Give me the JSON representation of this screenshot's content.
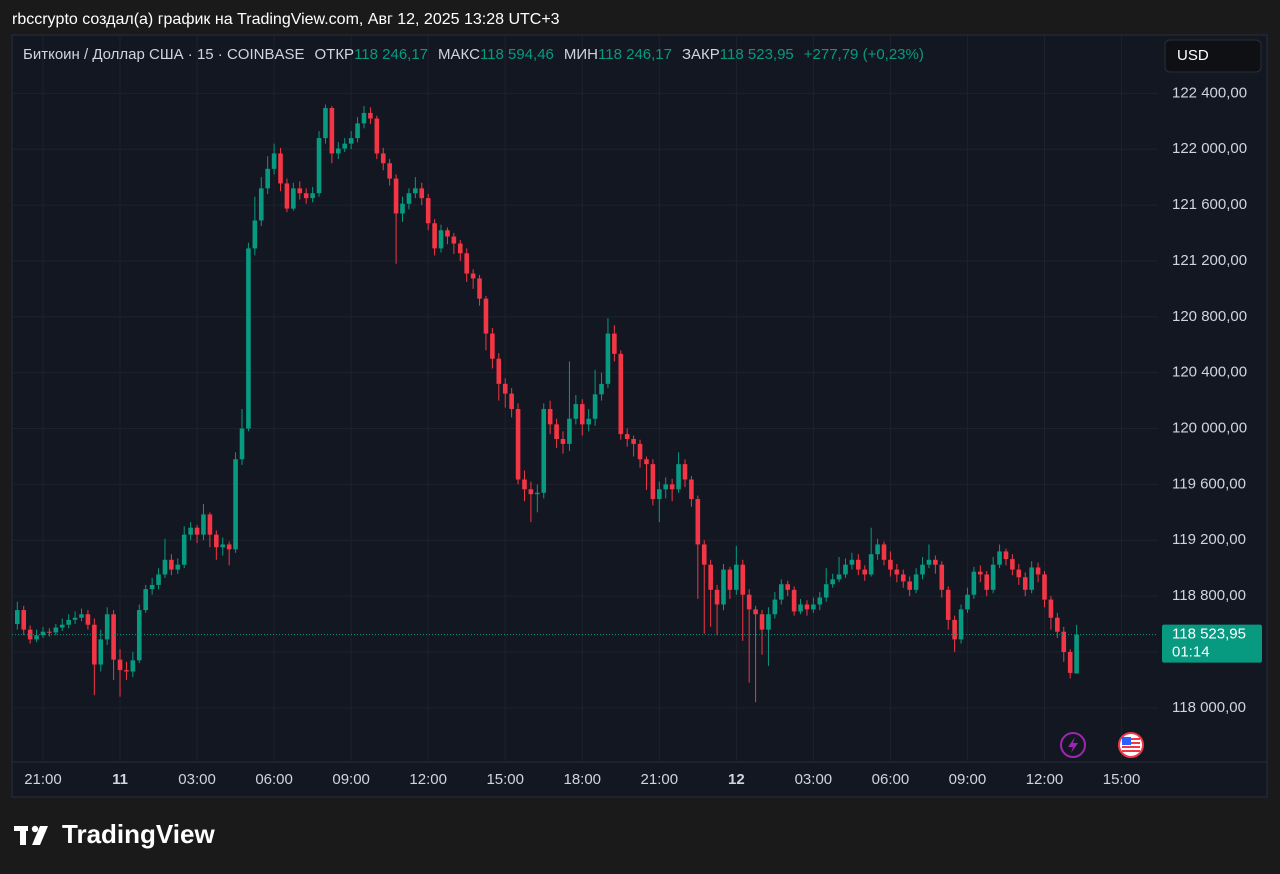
{
  "header": {
    "text": "rbccrypto создал(а) график на TradingView.com, Авг 12, 2025 13:28 UTC+3"
  },
  "chart_data": {
    "type": "candlestick",
    "symbol": "Биткоин / Доллар США · 15 · COINBASE",
    "readout": [
      {
        "label": "ОТКР",
        "value": "118 246,17"
      },
      {
        "label": "МАКС",
        "value": "118 594,46"
      },
      {
        "label": "МИН",
        "value": "118 246,17"
      },
      {
        "label": "ЗАКР",
        "value": "118 523,95"
      }
    ],
    "change": "+277,79 (+0,23%)",
    "currency": "USD",
    "last_price_label": "118 523,95",
    "countdown": "01:14",
    "up_color": "#089981",
    "down_color": "#f23645",
    "grid": true,
    "ylim": [
      117612,
      122811
    ],
    "yticks": [
      {
        "value": 118000,
        "label": "118 000,00"
      },
      {
        "value": 118400,
        "label": "118 400,00"
      },
      {
        "value": 118800,
        "label": "118 800,00"
      },
      {
        "value": 119200,
        "label": "119 200,00"
      },
      {
        "value": 119600,
        "label": "119 600,00"
      },
      {
        "value": 120000,
        "label": "120 000,00"
      },
      {
        "value": 120400,
        "label": "120 400,00"
      },
      {
        "value": 120800,
        "label": "120 800,00"
      },
      {
        "value": 121200,
        "label": "121 200,00"
      },
      {
        "value": 121600,
        "label": "121 600,00"
      },
      {
        "value": 122000,
        "label": "122 000,00"
      },
      {
        "value": 122400,
        "label": "122 400,00"
      }
    ],
    "categories": [
      null,
      null,
      null,
      null,
      "21:00",
      null,
      null,
      null,
      null,
      null,
      null,
      null,
      null,
      null,
      null,
      null,
      "11",
      null,
      null,
      null,
      null,
      null,
      null,
      null,
      null,
      null,
      null,
      null,
      "03:00",
      null,
      null,
      null,
      null,
      null,
      null,
      null,
      null,
      null,
      null,
      null,
      "06:00",
      null,
      null,
      null,
      null,
      null,
      null,
      null,
      null,
      null,
      null,
      null,
      "09:00",
      null,
      null,
      null,
      null,
      null,
      null,
      null,
      null,
      null,
      null,
      null,
      "12:00",
      null,
      null,
      null,
      null,
      null,
      null,
      null,
      null,
      null,
      null,
      null,
      "15:00",
      null,
      null,
      null,
      null,
      null,
      null,
      null,
      null,
      null,
      null,
      null,
      "18:00",
      null,
      null,
      null,
      null,
      null,
      null,
      null,
      null,
      null,
      null,
      null,
      "21:00",
      null,
      null,
      null,
      null,
      null,
      null,
      null,
      null,
      null,
      null,
      null,
      "12",
      null,
      null,
      null,
      null,
      null,
      null,
      null,
      null,
      null,
      null,
      null,
      "03:00",
      null,
      null,
      null,
      null,
      null,
      null,
      null,
      null,
      null,
      null,
      null,
      "06:00",
      null,
      null,
      null,
      null,
      null,
      null,
      null,
      null,
      null,
      null,
      null,
      "09:00",
      null,
      null,
      null,
      null,
      null,
      null,
      null,
      null,
      null,
      null,
      null,
      "12:00",
      null,
      null,
      null,
      null,
      null,
      null,
      null,
      null,
      null,
      null,
      null,
      "15:00"
    ],
    "open": [
      118600,
      118700,
      118560,
      118490,
      118520,
      118545,
      118540,
      118575,
      118595,
      118630,
      118645,
      118670,
      118595,
      118310,
      118490,
      118670,
      118345,
      118270,
      118260,
      118340,
      118700,
      118850,
      118880,
      118955,
      119060,
      118990,
      119025,
      119240,
      119290,
      119240,
      119385,
      119240,
      119150,
      119170,
      119135,
      119780,
      120000,
      121290,
      121490,
      121720,
      121860,
      121970,
      121755,
      121575,
      121720,
      121685,
      121650,
      121685,
      122080,
      122295,
      121970,
      122005,
      122040,
      122080,
      122185,
      122260,
      122220,
      121970,
      121900,
      121790,
      121540,
      121610,
      121685,
      121720,
      121650,
      121470,
      121290,
      121420,
      121375,
      121325,
      121255,
      121110,
      121075,
      120930,
      120680,
      120500,
      120320,
      120250,
      120140,
      119635,
      119565,
      119530,
      119540,
      120140,
      120030,
      119925,
      119890,
      120070,
      120175,
      120030,
      120070,
      120245,
      120320,
      120680,
      120535,
      119960,
      119925,
      119890,
      119780,
      119745,
      119495,
      119565,
      119600,
      119565,
      119745,
      119635,
      119495,
      119170,
      119025,
      118845,
      118740,
      118990,
      118845,
      119025,
      118810,
      118705,
      118670,
      118560,
      118670,
      118775,
      118885,
      118845,
      118690,
      118740,
      118705,
      118740,
      118790,
      118885,
      118920,
      118955,
      119025,
      119060,
      118990,
      118955,
      119100,
      119170,
      119060,
      118990,
      118955,
      118905,
      118845,
      118955,
      119025,
      119060,
      119025,
      118845,
      118630,
      118490,
      118705,
      118810,
      118975,
      118955,
      118845,
      119025,
      119120,
      119065,
      118990,
      118935,
      118845,
      119005,
      118955,
      118775,
      118645,
      118545,
      118400,
      118246.17,
      null,
      null,
      null,
      null,
      null,
      null,
      null
    ],
    "high": [
      118760,
      118730,
      118590,
      118560,
      118580,
      118570,
      118600,
      118640,
      118670,
      118690,
      118710,
      118700,
      118640,
      118560,
      118720,
      118700,
      118420,
      118330,
      118400,
      118740,
      118880,
      118930,
      119000,
      119210,
      119100,
      119070,
      119300,
      119330,
      119310,
      119460,
      119400,
      119270,
      119220,
      119190,
      119830,
      120140,
      121330,
      121660,
      121800,
      121950,
      122040,
      122010,
      121790,
      121760,
      121770,
      121720,
      121730,
      122130,
      122320,
      122310,
      122050,
      122080,
      122130,
      122230,
      122310,
      122300,
      122240,
      122010,
      121930,
      121820,
      121660,
      121720,
      121800,
      121760,
      121680,
      121500,
      121460,
      121440,
      121400,
      121350,
      121290,
      121140,
      121100,
      120950,
      120720,
      120540,
      120360,
      120290,
      120180,
      119700,
      119620,
      119600,
      120180,
      120200,
      120070,
      119980,
      120480,
      120240,
      120210,
      120140,
      120420,
      120400,
      120790,
      120740,
      120560,
      120000,
      119950,
      119920,
      119800,
      119780,
      119620,
      119650,
      119640,
      119830,
      119780,
      119660,
      119520,
      119200,
      119060,
      118880,
      119030,
      119010,
      119160,
      119060,
      118850,
      118730,
      118700,
      118720,
      118830,
      118920,
      118910,
      118870,
      118780,
      118770,
      118790,
      118830,
      119000,
      118960,
      119080,
      119070,
      119110,
      119100,
      119020,
      119290,
      119210,
      119190,
      119120,
      119030,
      118990,
      118940,
      119000,
      119080,
      119170,
      119090,
      119050,
      118870,
      118660,
      118740,
      118860,
      119010,
      119020,
      118980,
      119080,
      119170,
      119140,
      119100,
      119030,
      118970,
      119050,
      119040,
      118980,
      118800,
      118680,
      118580,
      118420,
      118594.46,
      null,
      null,
      null,
      null,
      null,
      null,
      null
    ],
    "low": [
      118560,
      118520,
      118460,
      118470,
      118500,
      118510,
      118520,
      118550,
      118570,
      118600,
      118620,
      118560,
      118090,
      118260,
      118450,
      118200,
      118080,
      118200,
      118220,
      118320,
      118680,
      118810,
      118850,
      118930,
      118950,
      118960,
      119000,
      119200,
      119180,
      119200,
      119150,
      119060,
      119090,
      119020,
      119110,
      119740,
      119980,
      121240,
      121450,
      121680,
      121820,
      121700,
      121550,
      121560,
      121640,
      121610,
      121620,
      121660,
      122040,
      121900,
      121930,
      121980,
      122000,
      122050,
      122150,
      122180,
      121930,
      121850,
      121740,
      121180,
      121480,
      121570,
      121650,
      121600,
      121420,
      121240,
      121260,
      121320,
      121250,
      121200,
      121050,
      121000,
      120880,
      120560,
      120430,
      120200,
      120150,
      120080,
      119600,
      119480,
      119330,
      119400,
      119500,
      119960,
      119860,
      119820,
      119840,
      120030,
      119950,
      119980,
      120020,
      120200,
      120290,
      120480,
      119920,
      119870,
      119800,
      119720,
      119560,
      119450,
      119330,
      119500,
      119480,
      119540,
      119580,
      119440,
      118780,
      118530,
      118580,
      118520,
      118700,
      118780,
      118810,
      118480,
      118180,
      118040,
      118380,
      118300,
      118640,
      118740,
      118800,
      118660,
      118670,
      118660,
      118680,
      118700,
      118760,
      118860,
      118900,
      118930,
      118990,
      118950,
      118910,
      118940,
      119060,
      119020,
      118940,
      118900,
      118860,
      118800,
      118820,
      118920,
      119000,
      118960,
      118790,
      118560,
      118400,
      118460,
      118680,
      118780,
      118900,
      118800,
      118820,
      119000,
      119020,
      118950,
      118880,
      118800,
      118820,
      118900,
      118720,
      118560,
      118500,
      118330,
      118210,
      118246.17,
      null,
      null,
      null,
      null,
      null,
      null,
      null
    ],
    "close": [
      118700,
      118560,
      118490,
      118520,
      118545,
      118540,
      118575,
      118595,
      118630,
      118645,
      118670,
      118595,
      118310,
      118490,
      118670,
      118345,
      118270,
      118260,
      118340,
      118700,
      118850,
      118880,
      118955,
      119060,
      118990,
      119025,
      119240,
      119290,
      119240,
      119385,
      119240,
      119150,
      119170,
      119135,
      119780,
      120000,
      121290,
      121490,
      121720,
      121860,
      121970,
      121755,
      121575,
      121720,
      121685,
      121650,
      121685,
      122080,
      122295,
      121970,
      122005,
      122040,
      122080,
      122185,
      122260,
      122220,
      121970,
      121900,
      121790,
      121540,
      121610,
      121685,
      121720,
      121650,
      121470,
      121290,
      121420,
      121375,
      121325,
      121255,
      121110,
      121075,
      120930,
      120680,
      120500,
      120320,
      120250,
      120140,
      119635,
      119565,
      119530,
      119540,
      120140,
      120030,
      119925,
      119890,
      120070,
      120175,
      120030,
      120070,
      120245,
      120320,
      120680,
      120535,
      119960,
      119925,
      119890,
      119780,
      119745,
      119495,
      119565,
      119600,
      119565,
      119745,
      119635,
      119495,
      119170,
      119025,
      118845,
      118740,
      118990,
      118845,
      119025,
      118810,
      118705,
      118670,
      118560,
      118670,
      118775,
      118885,
      118845,
      118690,
      118740,
      118705,
      118740,
      118790,
      118885,
      118920,
      118955,
      119025,
      119060,
      118990,
      118955,
      119100,
      119170,
      119060,
      118990,
      118955,
      118905,
      118845,
      118955,
      119025,
      119060,
      119025,
      118845,
      118630,
      118490,
      118705,
      118810,
      118975,
      118955,
      118845,
      119025,
      119120,
      119065,
      118990,
      118935,
      118845,
      119005,
      118955,
      118775,
      118645,
      118545,
      118400,
      118250,
      118523.95,
      null,
      null,
      null,
      null,
      null,
      null,
      null
    ]
  },
  "footer": {
    "logo": "TradingView"
  }
}
